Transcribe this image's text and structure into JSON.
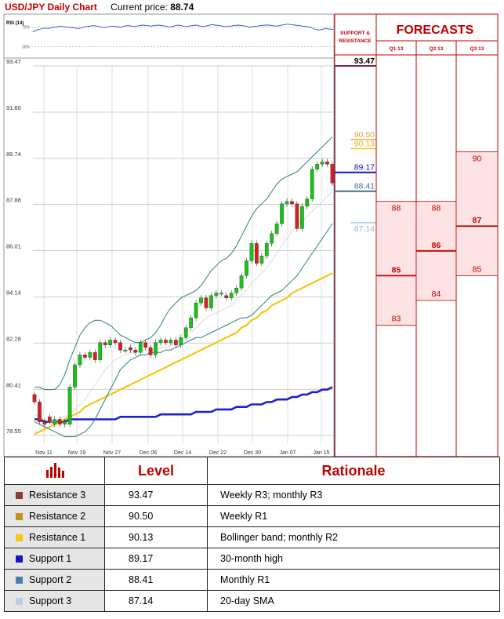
{
  "header": {
    "title": "USD/JPY Daily Chart",
    "current_price_label": "Current price:",
    "current_price": "88.74"
  },
  "rsi": {
    "label": "RSI (14)",
    "upper": "70%",
    "lower": "30%",
    "values": [
      60,
      64,
      66,
      68,
      67,
      69,
      70,
      72,
      71,
      70,
      69,
      68,
      67,
      69,
      71,
      72,
      73,
      72,
      70,
      69,
      71,
      72,
      71,
      70,
      72,
      73,
      72,
      71,
      73,
      74,
      73,
      72,
      73,
      74,
      73,
      72,
      70,
      72,
      74,
      73,
      71,
      72,
      73,
      74,
      72,
      71,
      73,
      75,
      74,
      73,
      72,
      71,
      72,
      73,
      74,
      73,
      72,
      70,
      71,
      72,
      73,
      74,
      74,
      73,
      72,
      73,
      75,
      76,
      75,
      74,
      73,
      72,
      71,
      70,
      66,
      64,
      65,
      67,
      66,
      65
    ]
  },
  "chart_data": {
    "type": "line",
    "title": "USD/JPY Daily Chart",
    "y_ticks": [
      "93.47",
      "91.60",
      "89.74",
      "87.88",
      "86.01",
      "84.14",
      "82.28",
      "80.41",
      "78.55"
    ],
    "ylim": [
      78.55,
      93.47
    ],
    "x_ticks": [
      "Nov 11",
      "Nov 19",
      "Nov 27",
      "Dec 06",
      "Dec 14",
      "Dec 22",
      "Dec 30",
      "Jan 07",
      "Jan 15"
    ],
    "grid": true,
    "candles": [
      [
        80.2,
        79.9
      ],
      [
        79.9,
        79.1
      ],
      [
        79.1,
        79.0
      ],
      [
        79.3,
        79.1
      ],
      [
        79.0,
        79.2
      ],
      [
        79.2,
        79.0
      ],
      [
        79.0,
        79.1
      ],
      [
        79.0,
        80.5
      ],
      [
        80.5,
        81.4
      ],
      [
        81.4,
        81.8
      ],
      [
        81.8,
        81.7
      ],
      [
        81.7,
        81.9
      ],
      [
        81.9,
        81.6
      ],
      [
        81.6,
        82.3
      ],
      [
        82.3,
        82.2
      ],
      [
        82.2,
        82.4
      ],
      [
        82.4,
        82.3
      ],
      [
        82.3,
        82.0
      ],
      [
        82.0,
        82.0
      ],
      [
        82.1,
        82.0
      ],
      [
        82.0,
        81.9
      ],
      [
        81.9,
        82.3
      ],
      [
        82.3,
        82.1
      ],
      [
        82.1,
        81.8
      ],
      [
        81.8,
        82.3
      ],
      [
        82.3,
        82.4
      ],
      [
        82.4,
        82.3
      ],
      [
        82.3,
        82.4
      ],
      [
        82.4,
        82.2
      ],
      [
        82.2,
        82.5
      ],
      [
        82.5,
        82.9
      ],
      [
        82.9,
        83.3
      ],
      [
        83.3,
        83.9
      ],
      [
        83.9,
        84.1
      ],
      [
        84.1,
        83.7
      ],
      [
        83.7,
        84.2
      ],
      [
        84.2,
        84.3
      ],
      [
        84.3,
        84.3
      ],
      [
        84.2,
        84.1
      ],
      [
        84.1,
        84.3
      ],
      [
        84.3,
        84.5
      ],
      [
        84.5,
        85.0
      ],
      [
        85.0,
        85.6
      ],
      [
        85.6,
        86.3
      ],
      [
        86.3,
        85.5
      ],
      [
        85.5,
        85.8
      ],
      [
        85.8,
        86.3
      ],
      [
        86.3,
        86.7
      ],
      [
        86.7,
        87.1
      ],
      [
        87.1,
        87.9
      ],
      [
        87.9,
        88.0
      ],
      [
        88.0,
        87.9
      ],
      [
        87.9,
        86.9
      ],
      [
        86.9,
        87.8
      ],
      [
        87.8,
        88.1
      ],
      [
        88.1,
        89.3
      ],
      [
        89.3,
        89.5
      ],
      [
        89.5,
        89.6
      ],
      [
        89.6,
        89.5
      ],
      [
        89.5,
        88.74
      ]
    ],
    "series": [
      {
        "values": [
          79.2,
          79.2,
          79.1,
          79.1,
          79.1,
          79.1,
          79.1,
          79.2,
          79.2,
          79.2,
          79.2,
          79.2,
          79.2,
          79.2,
          79.2,
          79.2,
          79.2,
          79.3,
          79.3,
          79.3,
          79.3,
          79.3,
          79.3,
          79.3,
          79.3,
          79.4,
          79.4,
          79.4,
          79.4,
          79.4,
          79.4,
          79.4,
          79.5,
          79.5,
          79.5,
          79.5,
          79.6,
          79.6,
          79.6,
          79.6,
          79.7,
          79.7,
          79.7,
          79.8,
          79.8,
          79.8,
          79.9,
          79.9,
          80.0,
          80.0,
          80.0,
          80.1,
          80.1,
          80.2,
          80.2,
          80.3,
          80.3,
          80.4,
          80.4,
          80.5
        ]
      },
      {
        "values": [
          78.6,
          78.7,
          78.8,
          78.9,
          79.0,
          79.1,
          79.2,
          79.3,
          79.4,
          79.5,
          79.7,
          79.8,
          79.9,
          80.0,
          80.1,
          80.2,
          80.3,
          80.4,
          80.5,
          80.6,
          80.7,
          80.8,
          80.9,
          81.0,
          81.1,
          81.2,
          81.3,
          81.4,
          81.5,
          81.6,
          81.7,
          81.8,
          81.9,
          82.0,
          82.1,
          82.2,
          82.3,
          82.4,
          82.5,
          82.6,
          82.7,
          82.9,
          83.0,
          83.2,
          83.3,
          83.5,
          83.6,
          83.8,
          83.9,
          84.0,
          84.1,
          84.3,
          84.4,
          84.5,
          84.6,
          84.7,
          84.8,
          84.9,
          85.0,
          85.1
        ]
      },
      {
        "values": [
          79.4,
          79.3,
          79.2,
          79.1,
          79.1,
          79.2,
          79.3,
          79.4,
          79.6,
          79.8,
          80.0,
          80.3,
          80.6,
          80.9,
          81.2,
          81.4,
          81.6,
          81.7,
          81.8,
          81.9,
          81.9,
          82.0,
          82.0,
          82.0,
          82.0,
          82.1,
          82.1,
          82.2,
          82.3,
          82.4,
          82.5,
          82.7,
          82.9,
          83.1,
          83.3,
          83.4,
          83.5,
          83.6,
          83.7,
          83.8,
          84.0,
          84.2,
          84.4,
          84.7,
          84.9,
          85.1,
          85.3,
          85.6,
          85.9,
          86.2,
          86.5,
          86.8,
          87.0,
          87.2,
          87.4,
          87.6,
          87.8,
          88.0,
          88.2,
          88.4
        ]
      },
      {
        "values": [
          80.5,
          80.5,
          80.4,
          80.4,
          80.4,
          80.6,
          81.0,
          81.6,
          82.1,
          82.6,
          82.9,
          83.1,
          83.2,
          83.2,
          83.1,
          83.0,
          82.8,
          82.6,
          82.5,
          82.4,
          82.3,
          82.3,
          82.4,
          82.5,
          82.7,
          83.0,
          83.4,
          83.7,
          83.9,
          84.1,
          84.2,
          84.3,
          84.4,
          84.6,
          84.9,
          85.2,
          85.4,
          85.6,
          85.7,
          85.9,
          86.2,
          86.6,
          87.0,
          87.4,
          87.7,
          87.9,
          88.1,
          88.4,
          88.7,
          88.9,
          89.0,
          89.1,
          89.2,
          89.4,
          89.6,
          89.8,
          90.0,
          90.2,
          90.4,
          90.6
        ]
      },
      {
        "values": [
          79.1,
          79.0,
          78.9,
          78.8,
          78.7,
          78.6,
          78.5,
          78.5,
          78.5,
          78.6,
          78.7,
          78.9,
          79.2,
          79.6,
          80.0,
          80.4,
          80.8,
          81.2,
          81.4,
          81.6,
          81.7,
          81.8,
          81.8,
          81.9,
          81.9,
          81.9,
          82.0,
          82.0,
          82.1,
          82.2,
          82.3,
          82.4,
          82.5,
          82.5,
          82.6,
          82.7,
          82.8,
          82.9,
          83.0,
          83.1,
          83.2,
          83.3,
          83.3,
          83.4,
          83.6,
          83.8,
          84.0,
          84.2,
          84.3,
          84.4,
          84.6,
          84.8,
          85.0,
          85.3,
          85.6,
          85.9,
          86.2,
          86.5,
          86.8,
          87.1
        ]
      }
    ]
  },
  "sr": {
    "header": [
      "SUPPORT &",
      "RESISTANCE"
    ],
    "levels": [
      {
        "price": 93.47,
        "label": "93.47",
        "color": "#7b2a3a",
        "text_color": "#000000",
        "bold": true,
        "short": false
      },
      {
        "price": 90.5,
        "label": "90.50",
        "color": "#e3b44f",
        "text_color": "#d9a53a",
        "bold": false,
        "short": true
      },
      {
        "price": 90.13,
        "label": "90.13",
        "color": "#f5c518",
        "text_color": "#e8b810",
        "bold": false,
        "short": true
      },
      {
        "price": 89.17,
        "label": "89.17",
        "color": "#1515c8",
        "text_color": "#1515c8",
        "bold": false,
        "short": false
      },
      {
        "price": 88.41,
        "label": "88.41",
        "color": "#4a6f88",
        "text_color": "#4a6f88",
        "bold": false,
        "short": false
      },
      {
        "price": 87.14,
        "label": "87.14",
        "color": "#a9cde0",
        "text_color": "#8fbcd0",
        "bold": false,
        "short": true
      }
    ]
  },
  "forecasts": {
    "title": "FORECASTS",
    "columns": [
      {
        "label": "Q1 13",
        "high": 88,
        "mid": 85,
        "low": 83
      },
      {
        "label": "Q2 13",
        "high": 88,
        "mid": 86,
        "low": 84
      },
      {
        "label": "Q3 13",
        "high": 90,
        "mid": 87,
        "low": 85
      }
    ]
  },
  "table": {
    "headers": {
      "level": "Level",
      "rationale": "Rationale"
    },
    "rows": [
      {
        "name": "Resistance 3",
        "color": "#8b3a3a",
        "level": "93.47",
        "rationale": "Weekly R3;  monthly R3"
      },
      {
        "name": "Resistance 2",
        "color": "#c8931a",
        "level": "90.50",
        "rationale": "Weekly R1"
      },
      {
        "name": "Resistance 1",
        "color": "#f5c518",
        "level": "90.13",
        "rationale": "Bollinger band; monthly R2"
      },
      {
        "name": "Support 1",
        "color": "#1515c8",
        "level": "89.17",
        "rationale": "30-month high"
      },
      {
        "name": "Support 2",
        "color": "#4a7fb0",
        "level": "88.41",
        "rationale": "Monthly R1"
      },
      {
        "name": "Support 3",
        "color": "#b8cfe6",
        "level": "87.14",
        "rationale": "20-day SMA"
      }
    ]
  }
}
